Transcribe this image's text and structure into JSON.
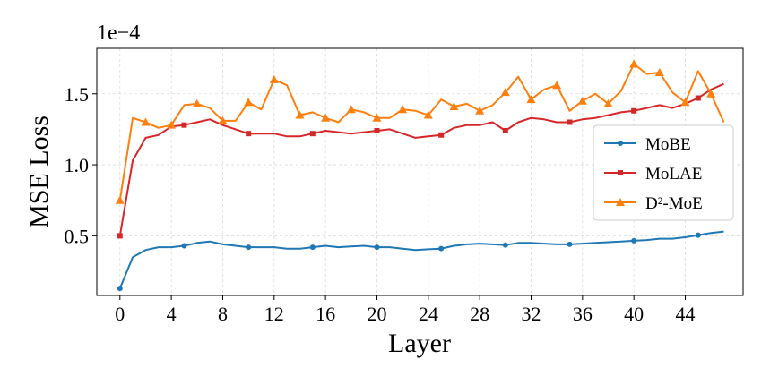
{
  "chart_data": {
    "type": "line",
    "title": "",
    "xlabel": "Layer",
    "ylabel": "MSE Loss",
    "y_scale_label": "1e−4",
    "xlim": [
      -1.8,
      48.5
    ],
    "ylim": [
      0.08,
      1.82
    ],
    "xticks": [
      0,
      4,
      8,
      12,
      16,
      20,
      24,
      28,
      32,
      36,
      40,
      44
    ],
    "xtick_labels": [
      "0",
      "4",
      "8",
      "12",
      "16",
      "20",
      "24",
      "28",
      "32",
      "36",
      "40",
      "44"
    ],
    "yticks": [
      0.5,
      1.0,
      1.5
    ],
    "ytick_labels": [
      "0.5",
      "1.0",
      "1.5"
    ],
    "grid": true,
    "legend_position": "right",
    "series": [
      {
        "name": "MoBE",
        "color": "#1f77b4",
        "marker": "circle",
        "marker_layers": [
          0,
          5,
          10,
          15,
          20,
          25,
          30,
          35,
          40,
          45
        ],
        "values": [
          0.13,
          0.35,
          0.4,
          0.42,
          0.42,
          0.43,
          0.45,
          0.46,
          0.44,
          0.43,
          0.42,
          0.42,
          0.42,
          0.41,
          0.41,
          0.42,
          0.43,
          0.42,
          0.425,
          0.43,
          0.42,
          0.42,
          0.41,
          0.4,
          0.405,
          0.41,
          0.43,
          0.44,
          0.445,
          0.44,
          0.435,
          0.45,
          0.45,
          0.445,
          0.44,
          0.44,
          0.445,
          0.45,
          0.455,
          0.46,
          0.465,
          0.47,
          0.48,
          0.48,
          0.49,
          0.505,
          0.52,
          0.53
        ]
      },
      {
        "name": "MoLAE",
        "color": "#d62728",
        "marker": "square",
        "marker_layers": [
          0,
          5,
          10,
          15,
          20,
          25,
          30,
          35,
          40,
          45
        ],
        "values": [
          0.5,
          1.03,
          1.19,
          1.21,
          1.27,
          1.28,
          1.3,
          1.32,
          1.28,
          1.25,
          1.22,
          1.22,
          1.22,
          1.2,
          1.2,
          1.22,
          1.24,
          1.23,
          1.22,
          1.23,
          1.24,
          1.25,
          1.22,
          1.19,
          1.2,
          1.21,
          1.26,
          1.28,
          1.28,
          1.3,
          1.24,
          1.3,
          1.33,
          1.32,
          1.3,
          1.3,
          1.32,
          1.33,
          1.35,
          1.37,
          1.38,
          1.4,
          1.42,
          1.4,
          1.43,
          1.47,
          1.53,
          1.57
        ]
      },
      {
        "name": "D²-MoE",
        "color": "#ff7f0e",
        "marker": "triangle",
        "marker_layers": [
          0,
          2,
          4,
          6,
          8,
          10,
          12,
          14,
          16,
          18,
          20,
          22,
          24,
          26,
          28,
          30,
          32,
          34,
          36,
          38,
          40,
          42,
          44,
          46
        ],
        "values": [
          0.75,
          1.33,
          1.3,
          1.26,
          1.28,
          1.42,
          1.43,
          1.4,
          1.31,
          1.31,
          1.44,
          1.39,
          1.6,
          1.56,
          1.35,
          1.37,
          1.33,
          1.3,
          1.39,
          1.37,
          1.33,
          1.33,
          1.39,
          1.38,
          1.35,
          1.46,
          1.41,
          1.43,
          1.38,
          1.42,
          1.51,
          1.62,
          1.46,
          1.53,
          1.56,
          1.38,
          1.45,
          1.5,
          1.43,
          1.52,
          1.71,
          1.64,
          1.65,
          1.51,
          1.44,
          1.66,
          1.5,
          1.3
        ]
      }
    ]
  }
}
